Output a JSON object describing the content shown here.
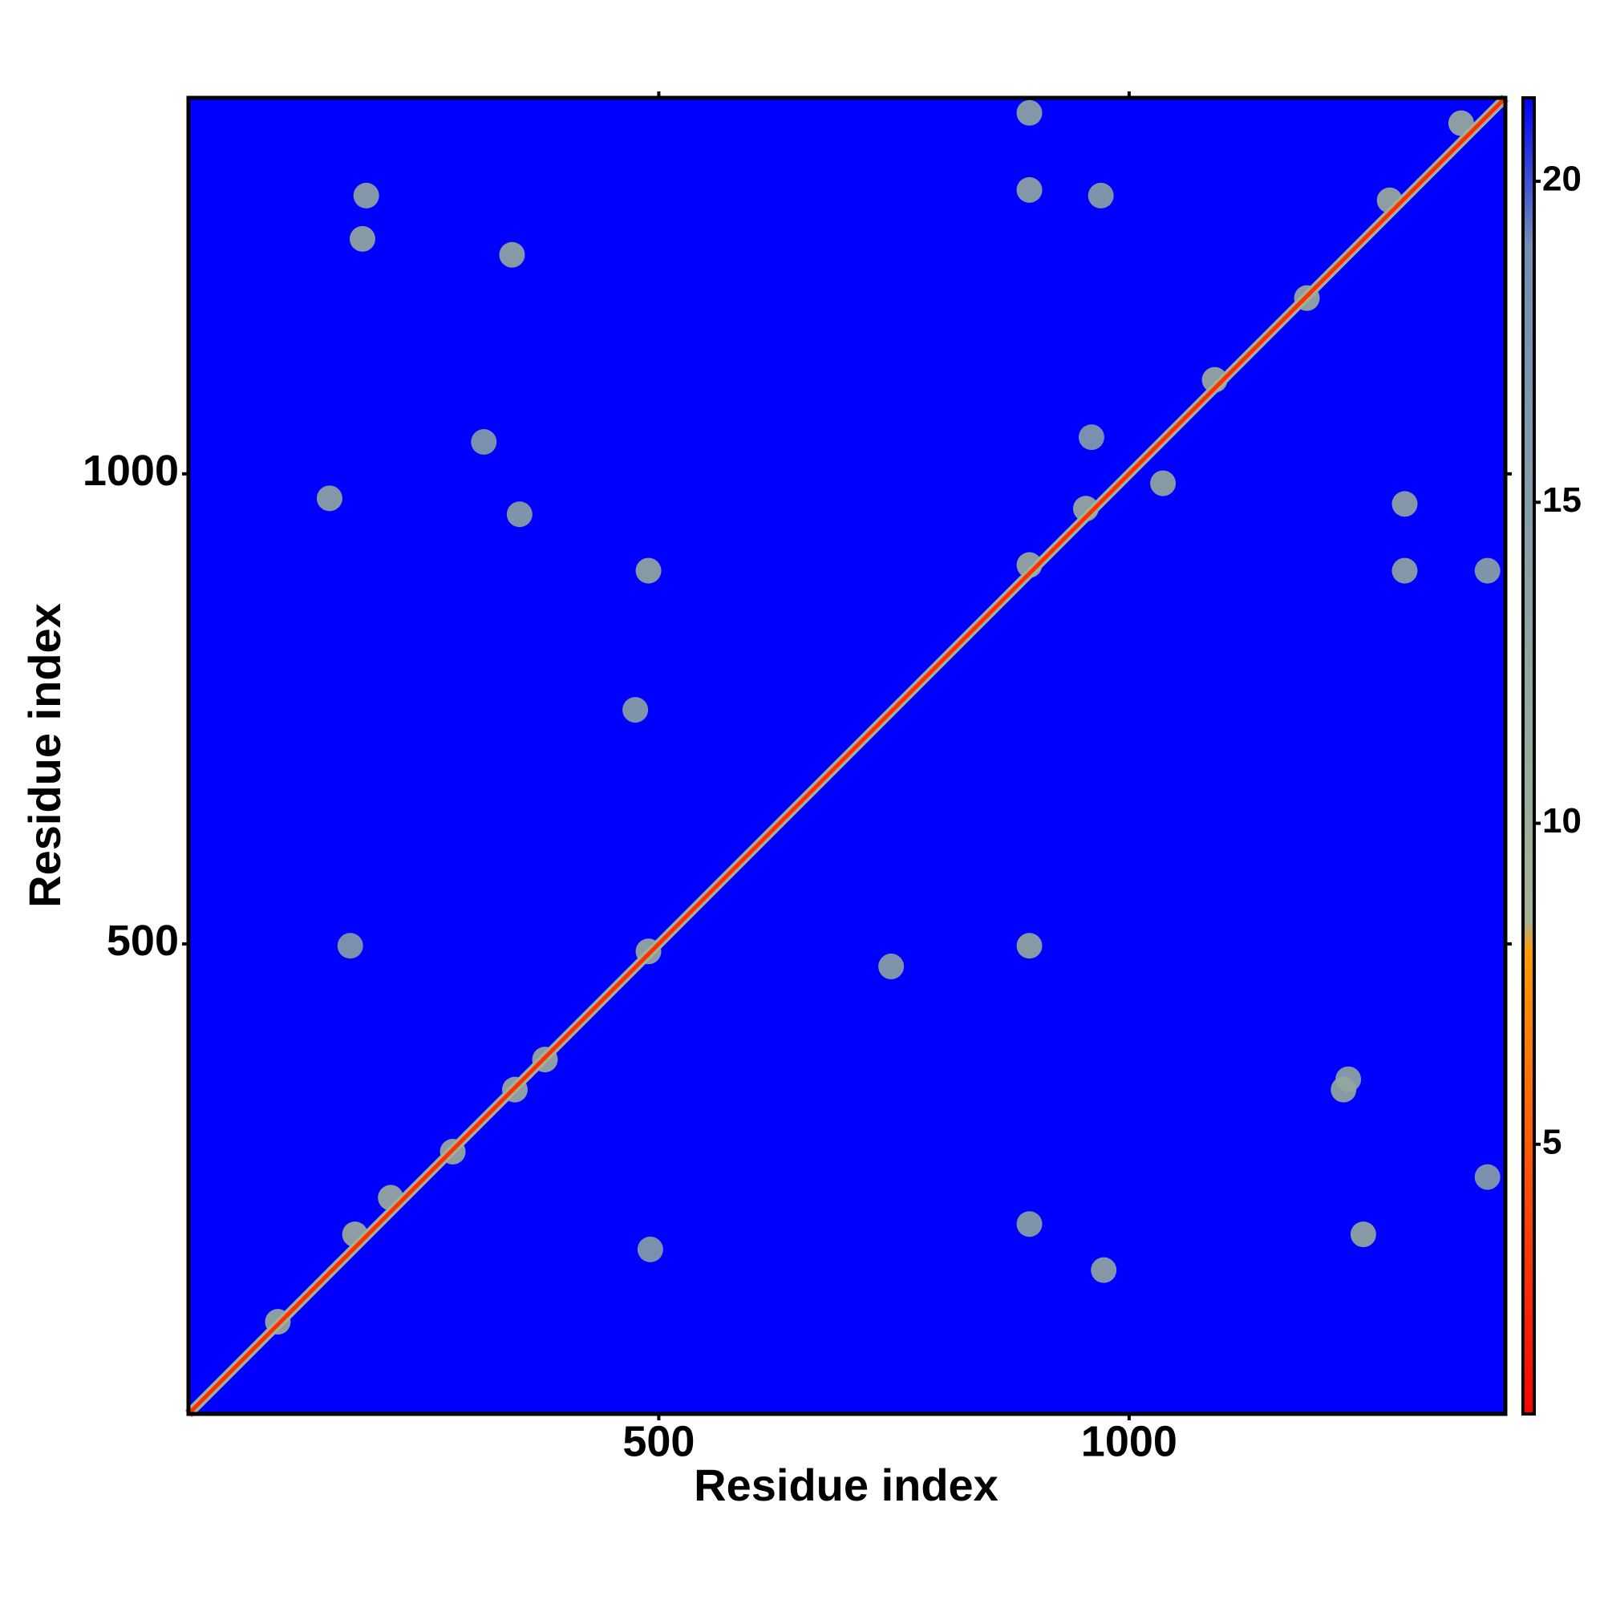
{
  "chart_data": {
    "type": "heatmap",
    "x_label": "Residue index",
    "y_label": "Residue index",
    "xlim": [
      0,
      1400
    ],
    "ylim": [
      0,
      1400
    ],
    "xticks": [
      500,
      1000
    ],
    "yticks": [
      500,
      1000
    ],
    "colorlim": [
      0.8,
      21.3
    ],
    "colorbar_ticks": [
      5,
      10,
      15,
      20
    ],
    "colorscale": [
      [
        0.8,
        "#ff0000"
      ],
      [
        8,
        "#ff9900"
      ],
      [
        8.5,
        "#a3b394"
      ],
      [
        19,
        "#6f8fb5"
      ],
      [
        21.3,
        "#0000ff"
      ]
    ],
    "diagonal": {
      "x": [
        0,
        1400
      ],
      "y": [
        0,
        1400
      ],
      "value": 3
    },
    "contacts": {
      "x": [
        489,
        894,
        185,
        1249,
        344,
        1228,
        150,
        1293,
        189,
        894,
        970,
        894,
        352,
        475,
        747,
        973,
        894,
        491,
        1381,
        1293,
        960,
        314,
        172,
        1233,
        1381,
        1189,
        489,
        954,
        894,
        1036,
        1091,
        1277,
        1353,
        177,
        215,
        347,
        379,
        281,
        95
      ],
      "y": [
        897,
        498,
        1250,
        191,
        1233,
        345,
        974,
        968,
        1296,
        1302,
        1296,
        1384,
        957,
        749,
        476,
        153,
        202,
        175,
        897,
        897,
        1039,
        1034,
        498,
        356,
        252,
        1187,
        492,
        963,
        903,
        990,
        1100,
        1291,
        1373,
        191,
        230,
        345,
        377,
        279,
        98
      ],
      "values": [
        11,
        11,
        11,
        11,
        11,
        11,
        12,
        12,
        12,
        12,
        13,
        12,
        13,
        13,
        13,
        12,
        13,
        14,
        13,
        12,
        14,
        14,
        14,
        12,
        14,
        10,
        10,
        10,
        10,
        11,
        10,
        10,
        10,
        10,
        10,
        10,
        10,
        10,
        10
      ]
    }
  }
}
